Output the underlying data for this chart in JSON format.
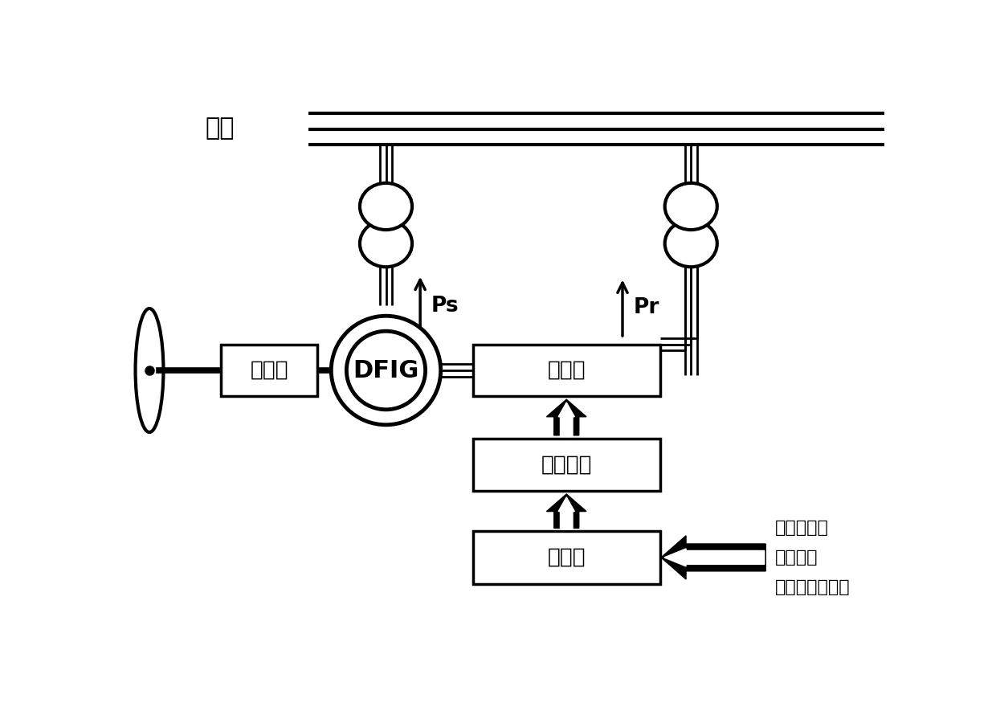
{
  "bg_color": "#ffffff",
  "line_color": "#000000",
  "grid_label": "电网",
  "gearbox_label": "齿轮笱",
  "dfig_label": "DFIG",
  "converter_label": "变流器",
  "drive_circuit_label": "驱动电路",
  "controller_label": "控制器",
  "ps_label": "Ps",
  "pr_label": "Pr",
  "info_line1": "发电机转速",
  "info_line2": "检测风速",
  "info_line3": "定转子电压电流",
  "lw": 2.5,
  "lw_thick": 5.5,
  "lw_bus": 2.0,
  "fs_large": 22,
  "fs_med": 19,
  "fs_small": 16,
  "fs_grid": 22
}
